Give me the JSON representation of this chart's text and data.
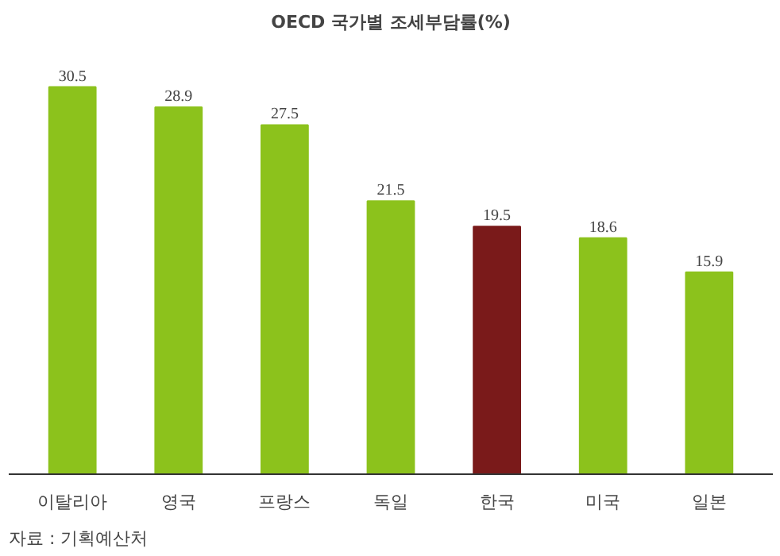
{
  "chart_data": {
    "type": "bar",
    "title": "OECD 국가별 조세부담률(%)",
    "categories": [
      "이탈리아",
      "영국",
      "프랑스",
      "독일",
      "한국",
      "미국",
      "일본"
    ],
    "values": [
      30.5,
      28.9,
      27.5,
      21.5,
      19.5,
      18.6,
      15.9
    ],
    "colors": [
      "#8cc21c",
      "#8cc21c",
      "#8cc21c",
      "#8cc21c",
      "#7a1a1a",
      "#8cc21c",
      "#8cc21c"
    ],
    "data_labels": true,
    "grid": false,
    "annotations": [
      "자료 : 기획예산처"
    ]
  }
}
